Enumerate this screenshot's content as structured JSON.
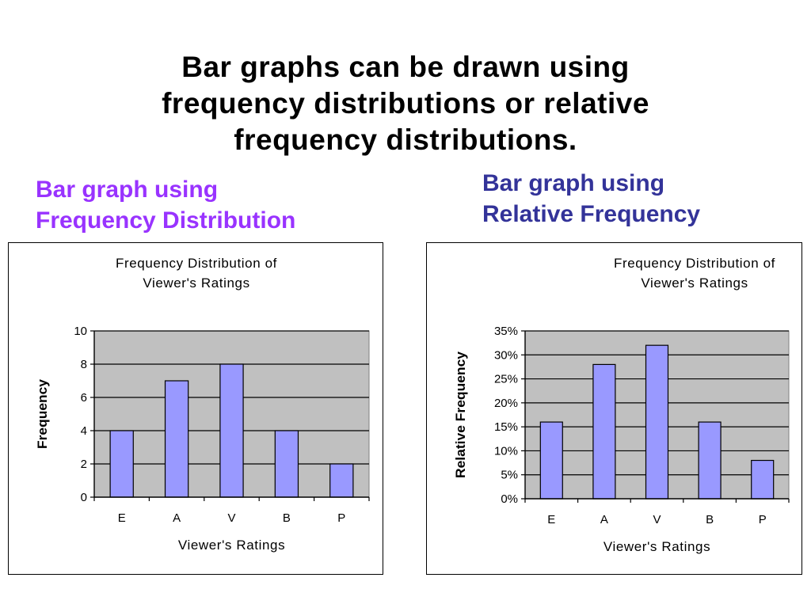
{
  "slide": {
    "title_lines": [
      "Bar graphs can be drawn using",
      "frequency distributions or relative",
      "frequency distributions."
    ],
    "subtitle_left_lines": [
      "Bar graph using",
      "Frequency Distribution"
    ],
    "subtitle_right_lines": [
      "Bar graph using",
      "Relative Frequency"
    ],
    "colors": {
      "subtitle_left": "#9933ff",
      "subtitle_right": "#333399",
      "bar_fill": "#9999ff",
      "plot_bg": "#c0c0c0"
    }
  },
  "chart_data": [
    {
      "type": "bar",
      "title_lines": [
        "Frequency Distribution of",
        "Viewer's Ratings"
      ],
      "categories": [
        "E",
        "A",
        "V",
        "B",
        "P"
      ],
      "values": [
        4,
        7,
        8,
        4,
        2
      ],
      "xlabel": "Viewer's Ratings",
      "ylabel": "Frequency",
      "ylim": [
        0,
        10
      ],
      "yticks": [
        0,
        2,
        4,
        6,
        8,
        10
      ],
      "ytick_labels": [
        "0",
        "2",
        "4",
        "6",
        "8",
        "10"
      ],
      "grid": true,
      "legend": "none"
    },
    {
      "type": "bar",
      "title_lines": [
        "Frequency Distribution of",
        "Viewer's Ratings"
      ],
      "categories": [
        "E",
        "A",
        "V",
        "B",
        "P"
      ],
      "values": [
        16,
        28,
        32,
        16,
        8
      ],
      "xlabel": "Viewer's Ratings",
      "ylabel": "Relative Frequency",
      "ylim": [
        0,
        35
      ],
      "yticks": [
        0,
        5,
        10,
        15,
        20,
        25,
        30,
        35
      ],
      "ytick_labels": [
        "0%",
        "5%",
        "10%",
        "15%",
        "20%",
        "25%",
        "30%",
        "35%"
      ],
      "grid": true,
      "legend": "none"
    }
  ]
}
